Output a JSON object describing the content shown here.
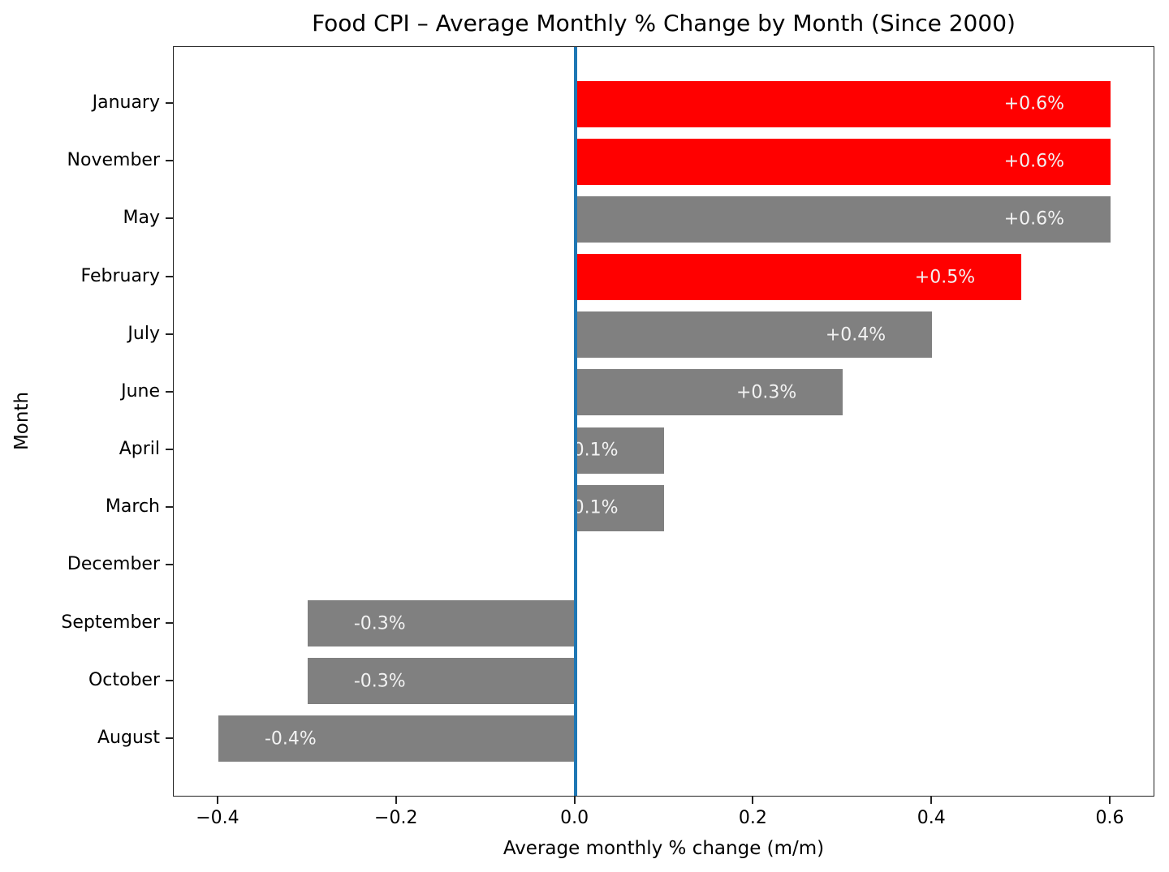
{
  "chart_data": {
    "type": "bar",
    "orientation": "horizontal",
    "title": "Food CPI – Average Monthly % Change by Month (Since 2000)",
    "xlabel": "Average monthly % change (m/m)",
    "ylabel": "Month",
    "xlim": [
      -0.45,
      0.65
    ],
    "grid": false,
    "legend": "none",
    "zero_line": {
      "x": 0.0,
      "color": "#1f77b4"
    },
    "colors": {
      "highlight_bar": "#ff0000",
      "default_bar": "#808080",
      "bar_label_text": "#f2f2f2",
      "axis_text": "#000000"
    },
    "xticks": [
      {
        "value": -0.4,
        "label": "−0.4"
      },
      {
        "value": -0.2,
        "label": "−0.2"
      },
      {
        "value": 0.0,
        "label": "0.0"
      },
      {
        "value": 0.2,
        "label": "0.2"
      },
      {
        "value": 0.4,
        "label": "0.4"
      },
      {
        "value": 0.6,
        "label": "0.6"
      }
    ],
    "bars": [
      {
        "month": "January",
        "value": 0.6,
        "label": "+0.6%",
        "highlight": true
      },
      {
        "month": "November",
        "value": 0.6,
        "label": "+0.6%",
        "highlight": true
      },
      {
        "month": "May",
        "value": 0.6,
        "label": "+0.6%",
        "highlight": false
      },
      {
        "month": "February",
        "value": 0.5,
        "label": "+0.5%",
        "highlight": true
      },
      {
        "month": "July",
        "value": 0.4,
        "label": "+0.4%",
        "highlight": false
      },
      {
        "month": "June",
        "value": 0.3,
        "label": "+0.3%",
        "highlight": false
      },
      {
        "month": "April",
        "value": 0.1,
        "label": "0.1%",
        "highlight": false
      },
      {
        "month": "March",
        "value": 0.1,
        "label": "0.1%",
        "highlight": false
      },
      {
        "month": "December",
        "value": 0.0,
        "label": "",
        "highlight": false
      },
      {
        "month": "September",
        "value": -0.3,
        "label": "-0.3%",
        "highlight": false
      },
      {
        "month": "October",
        "value": -0.3,
        "label": "-0.3%",
        "highlight": false
      },
      {
        "month": "August",
        "value": -0.4,
        "label": "-0.4%",
        "highlight": false
      }
    ]
  }
}
